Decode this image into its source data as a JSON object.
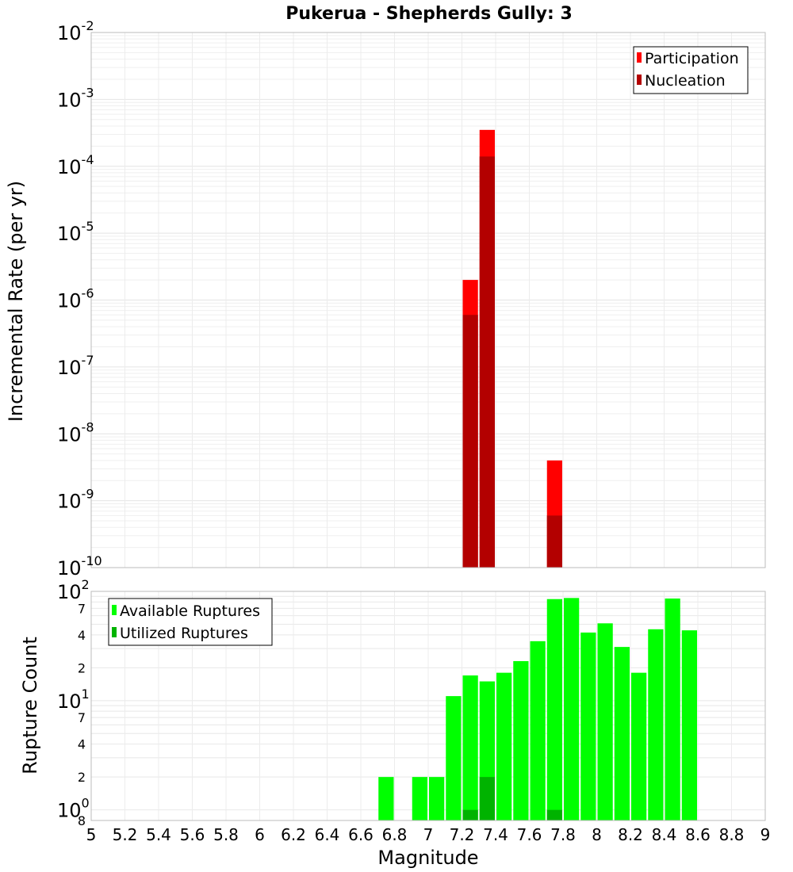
{
  "chart_data": [
    {
      "type": "bar",
      "title": "Pukerua - Shepherds Gully: 3",
      "xlabel": "",
      "ylabel": "Incremental Rate (per yr)",
      "yscale": "log",
      "ylim": [
        1e-10,
        0.01
      ],
      "xlim": [
        5,
        9
      ],
      "bin_width": 0.1,
      "y_tick_labels": [
        {
          "base": "10",
          "exp": "-10"
        },
        {
          "base": "10",
          "exp": "-9"
        },
        {
          "base": "10",
          "exp": "-8"
        },
        {
          "base": "10",
          "exp": "-7"
        },
        {
          "base": "10",
          "exp": "-6"
        },
        {
          "base": "10",
          "exp": "-5"
        },
        {
          "base": "10",
          "exp": "-4"
        },
        {
          "base": "10",
          "exp": "-3"
        },
        {
          "base": "10",
          "exp": "-2"
        }
      ],
      "legend_position": "top-right",
      "series": [
        {
          "name": "Participation",
          "color": "#ff0000",
          "x": [
            7.25,
            7.35,
            7.75
          ],
          "values": [
            2e-06,
            0.00035,
            4e-09
          ]
        },
        {
          "name": "Nucleation",
          "color": "#b30000",
          "x": [
            7.25,
            7.35,
            7.75
          ],
          "values": [
            6e-07,
            0.00014,
            6e-10
          ]
        }
      ]
    },
    {
      "type": "bar",
      "title": "",
      "xlabel": "Magnitude",
      "ylabel": "Rupture Count",
      "yscale": "log",
      "ylim": [
        0.8,
        100
      ],
      "xlim": [
        5,
        9
      ],
      "bin_width": 0.1,
      "x_tick_labels": [
        "5",
        "5.2",
        "5.4",
        "5.6",
        "5.8",
        "6",
        "6.2",
        "6.4",
        "6.6",
        "6.8",
        "7",
        "7.2",
        "7.4",
        "7.6",
        "7.8",
        "8",
        "8.2",
        "8.4",
        "8.6",
        "8.8",
        "9"
      ],
      "y_tick_labels": [
        {
          "base": "10",
          "exp": "0"
        },
        {
          "base": "10",
          "exp": "1"
        },
        {
          "base": "10",
          "exp": "2"
        }
      ],
      "y_minor_tick_labels": [
        "8",
        "2",
        "4",
        "7",
        "2",
        "4",
        "7"
      ],
      "legend_position": "top-left",
      "series": [
        {
          "name": "Available Ruptures",
          "color": "#00ff00",
          "x": [
            6.75,
            6.95,
            7.05,
            7.15,
            7.25,
            7.35,
            7.45,
            7.55,
            7.65,
            7.75,
            7.85,
            7.95,
            8.05,
            8.15,
            8.25,
            8.35,
            8.45,
            8.55
          ],
          "values": [
            2,
            2,
            2,
            11,
            17,
            15,
            18,
            23,
            35,
            85,
            87,
            42,
            51,
            31,
            18,
            45,
            86,
            44
          ]
        },
        {
          "name": "Utilized Ruptures",
          "color": "#00b300",
          "x": [
            7.25,
            7.35,
            7.75
          ],
          "values": [
            1,
            2,
            1
          ]
        }
      ]
    }
  ]
}
